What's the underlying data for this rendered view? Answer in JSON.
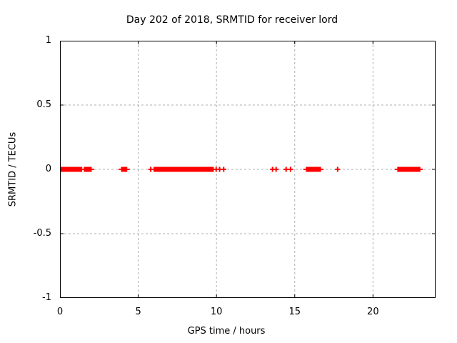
{
  "chart_data": {
    "type": "scatter",
    "title": "Day 202 of 2018, SRMTID for receiver lord",
    "xlabel": "GPS time / hours",
    "ylabel": "SRMTID / TECUs",
    "xlim": [
      0,
      24
    ],
    "ylim": [
      -1,
      1
    ],
    "xticks": [
      0,
      5,
      10,
      15,
      20
    ],
    "xtick_labels": [
      "0",
      "5",
      "10",
      "15",
      "20"
    ],
    "yticks": [
      1,
      0.5,
      0,
      -0.5,
      -1
    ],
    "ytick_labels": [
      "1",
      "0.5",
      "0",
      "-0.5",
      "-1"
    ],
    "grid": true,
    "legend": "none",
    "marker": "plus",
    "series_name": "SRMTID",
    "series_y_value": 0,
    "dense_segments_hours": [
      [
        0.0,
        1.42
      ],
      [
        1.52,
        2.03
      ],
      [
        3.9,
        4.3
      ],
      [
        5.98,
        9.83
      ],
      [
        15.71,
        16.68
      ],
      [
        21.55,
        23.03
      ]
    ],
    "isolated_points_hours": [
      5.8,
      9.98,
      10.2,
      10.46,
      13.58,
      13.81,
      14.45,
      14.73,
      17.74
    ],
    "colors": {
      "marker": "#ff0000",
      "grid": "#b0b0b0",
      "axis": "#000000",
      "background": "#ffffff"
    }
  }
}
